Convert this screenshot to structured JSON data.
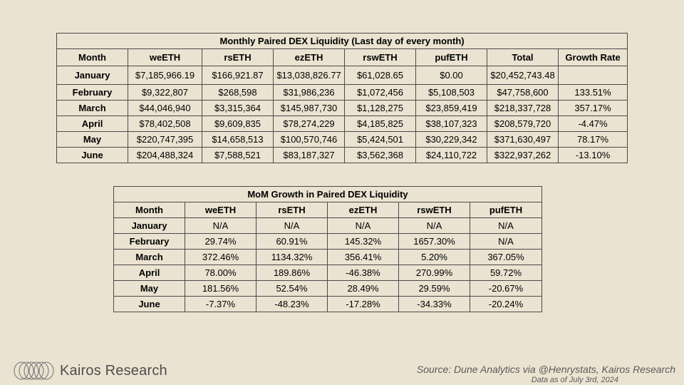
{
  "liquidity": {
    "title": "Monthly Paired DEX Liquidity (Last day of every month)",
    "headers": [
      "Month",
      "weETH",
      "rsETH",
      "ezETH",
      "rswETH",
      "pufETH",
      "Total",
      "Growth Rate"
    ],
    "rows": [
      [
        "January",
        "$7,185,966.19",
        "$166,921.87",
        "$13,038,826.77",
        "$61,028.65",
        "$0.00",
        "$20,452,743.48",
        ""
      ],
      [
        "February",
        "$9,322,807",
        "$268,598",
        "$31,986,236",
        "$1,072,456",
        "$5,108,503",
        "$47,758,600",
        "133.51%"
      ],
      [
        "March",
        "$44,046,940",
        "$3,315,364",
        "$145,987,730",
        "$1,128,275",
        "$23,859,419",
        "$218,337,728",
        "357.17%"
      ],
      [
        "April",
        "$78,402,508",
        "$9,609,835",
        "$78,274,229",
        "$4,185,825",
        "$38,107,323",
        "$208,579,720",
        "-4.47%"
      ],
      [
        "May",
        "$220,747,395",
        "$14,658,513",
        "$100,570,746",
        "$5,424,501",
        "$30,229,342",
        "$371,630,497",
        "78.17%"
      ],
      [
        "June",
        "$204,488,324",
        "$7,588,521",
        "$83,187,327",
        "$3,562,368",
        "$24,110,722",
        "$322,937,262",
        "-13.10%"
      ]
    ]
  },
  "mom": {
    "title": "MoM Growth in Paired DEX Liquidity",
    "headers": [
      "Month",
      "weETH",
      "rsETH",
      "ezETH",
      "rswETH",
      "pufETH"
    ],
    "rows": [
      [
        "January",
        "N/A",
        "N/A",
        "N/A",
        "N/A",
        "N/A"
      ],
      [
        "February",
        "29.74%",
        "60.91%",
        "145.32%",
        "1657.30%",
        "N/A"
      ],
      [
        "March",
        "372.46%",
        "1134.32%",
        "356.41%",
        "5.20%",
        "367.05%"
      ],
      [
        "April",
        "78.00%",
        "189.86%",
        "-46.38%",
        "270.99%",
        "59.72%"
      ],
      [
        "May",
        "181.56%",
        "52.54%",
        "28.49%",
        "29.59%",
        "-20.67%"
      ],
      [
        "June",
        "-7.37%",
        "-48.23%",
        "-17.28%",
        "-34.33%",
        "-20.24%"
      ]
    ]
  },
  "footer": {
    "brand": "Kairos Research",
    "source": "Source: Dune Analytics via @Henrystats, Kairos Research",
    "as_of": "Data as of July 3rd, 2024"
  },
  "colors": {
    "background": "#ebe3d1",
    "border": "#4a4a4a",
    "footer_text": "#5a5a5a"
  },
  "icons": {
    "logo": "kairos-rings-logo-icon"
  }
}
